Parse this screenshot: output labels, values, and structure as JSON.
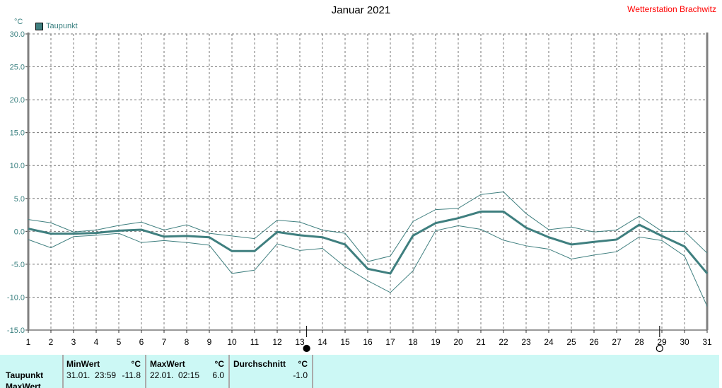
{
  "header": {
    "title": "Januar 2021",
    "station": "Wetterstation Brachwitz",
    "unit": "°C"
  },
  "legend": {
    "label": "Taupunkt"
  },
  "colors": {
    "series": "#3f7f7f",
    "axis_text": "#3a8080",
    "station": "#ff0000",
    "panel": "#ccf8f5"
  },
  "chart_data": {
    "type": "line",
    "title": "Januar 2021",
    "ylabel": "°C",
    "ylim": [
      -15,
      30
    ],
    "yticks": [
      "30.0",
      "25.0",
      "20.0",
      "15.0",
      "10.0",
      "5.0",
      "0.0",
      "-5.0",
      "-10.0",
      "-15.0"
    ],
    "x": [
      1,
      2,
      3,
      4,
      5,
      6,
      7,
      8,
      9,
      10,
      11,
      12,
      13,
      14,
      15,
      16,
      17,
      18,
      19,
      20,
      21,
      22,
      23,
      24,
      25,
      26,
      27,
      28,
      29,
      30,
      31
    ],
    "grid": true,
    "legend_position": "top-left",
    "series": [
      {
        "name": "Taupunkt",
        "role": "mean",
        "values": [
          0.4,
          -0.35,
          -0.35,
          -0.25,
          0.1,
          0.25,
          -0.8,
          -0.7,
          -0.9,
          -3.0,
          -3.0,
          -0.1,
          -0.6,
          -0.9,
          -2.0,
          -5.7,
          -6.4,
          -0.65,
          1.25,
          2.0,
          3.0,
          3.0,
          0.55,
          -0.9,
          -2.0,
          -1.6,
          -1.25,
          1.0,
          -0.7,
          -2.3,
          -6.4
        ]
      },
      {
        "role": "max",
        "values": [
          1.8,
          1.3,
          -0.1,
          0.2,
          0.9,
          1.4,
          0.2,
          1.0,
          -0.3,
          -0.7,
          -1.1,
          1.7,
          1.4,
          0.2,
          -0.3,
          -4.6,
          -3.75,
          1.5,
          3.3,
          3.5,
          5.6,
          6.0,
          2.7,
          0.25,
          0.65,
          -0.1,
          0.2,
          2.3,
          0.0,
          0.0,
          -3.3
        ]
      },
      {
        "role": "min",
        "values": [
          -1.25,
          -2.5,
          -0.8,
          -0.6,
          -0.3,
          -1.7,
          -1.4,
          -1.7,
          -2.1,
          -6.4,
          -5.9,
          -1.9,
          -2.9,
          -2.6,
          -5.4,
          -7.5,
          -9.3,
          -6.0,
          0.1,
          0.85,
          0.3,
          -1.35,
          -2.2,
          -2.7,
          -4.2,
          -3.6,
          -3.1,
          -0.85,
          -1.4,
          -3.75,
          -11.4
        ]
      }
    ],
    "moon_markers": [
      {
        "day": 13.3,
        "phase": "new-moon"
      },
      {
        "day": 28.9,
        "phase": "full-moon"
      }
    ]
  },
  "stats": {
    "row_label": "Taupunkt",
    "row_label2": "MaxWert",
    "min": {
      "header": "MinWert",
      "unit": "°C",
      "datetime": "31.01.  23:59",
      "value": "-11.8"
    },
    "max": {
      "header": "MaxWert",
      "unit": "°C",
      "datetime": "22.01.  02:15",
      "value": "6.0"
    },
    "avg": {
      "header": "Durchschnitt",
      "unit": "°C",
      "value": "-1.0"
    }
  }
}
